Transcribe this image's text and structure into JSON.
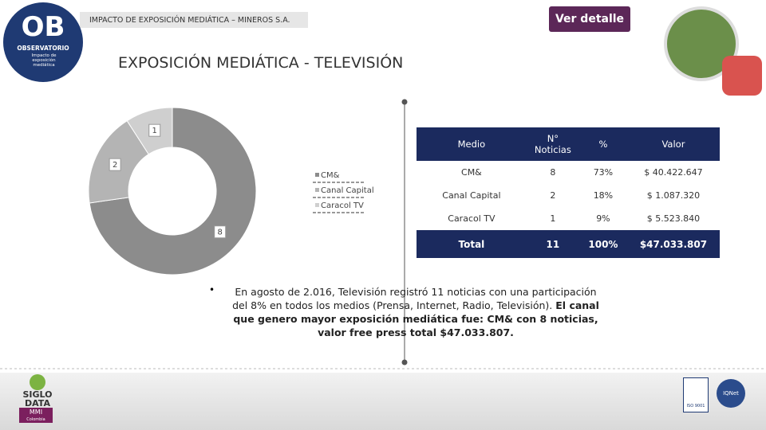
{
  "header": {
    "logo_text": "OB",
    "logo_subtitle": "OBSERVATORIO",
    "logo_caption": "Impacto de exposición mediática",
    "bar_text": "IMPACTO DE EXPOSICIÓN MEDIÁTICA – MINEROS S.A.",
    "button": "Ver detalle"
  },
  "title": "EXPOSICIÓN MEDIÁTICA - TELEVISIÓN",
  "chart_data": {
    "type": "pie",
    "donut": true,
    "categories": [
      "CM&",
      "Canal Capital",
      "Caracol TV"
    ],
    "values": [
      8,
      2,
      1
    ],
    "colors": [
      "#8c8c8c",
      "#b4b4b4",
      "#cfcfcf"
    ]
  },
  "table": {
    "header": [
      "Medio",
      "N° Noticias",
      "%",
      "Valor"
    ],
    "rows": [
      [
        "CM&",
        "8",
        "73%",
        "$ 40.422.647"
      ],
      [
        "Canal Capital",
        "2",
        "18%",
        "$ 1.087.320"
      ],
      [
        "Caracol TV",
        "1",
        "9%",
        "$ 5.523.840"
      ]
    ],
    "total": [
      "Total",
      "11",
      "100%",
      "$47.033.807"
    ]
  },
  "summary": {
    "normal": "En agosto de 2.016, Televisión registró 11 noticias con una participación del 8% en todos los medios (Prensa, Internet, Radio, Televisión).",
    "bold": "El canal que genero mayor exposición mediática fue: CM& con 8 noticias, valor free press total $47.033.807."
  },
  "footer": {
    "brand_top": "SIGLO",
    "brand_bottom": "DATA",
    "brand_tag": "MMI",
    "brand_country": "Colombia",
    "cert1": "ISO 9001",
    "cert2": "IQNet"
  }
}
